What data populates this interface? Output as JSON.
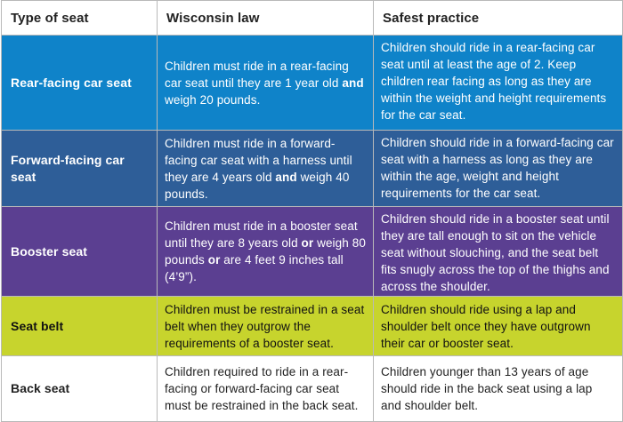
{
  "headers": {
    "type": "Type of seat",
    "law": "Wisconsin law",
    "practice": "Safest practice"
  },
  "rows": [
    {
      "type": "Rear-facing car seat",
      "law": [
        {
          "text": "Children must ride in a rear-facing car seat until they are 1 year old ",
          "bold": false
        },
        {
          "text": "and",
          "bold": true
        },
        {
          "text": " weigh 20 pounds.",
          "bold": false
        }
      ],
      "practice": "Children should ride in a rear-facing car seat until at least the age of 2. Keep children rear facing as long as they are within the weight and height requirements for the car seat."
    },
    {
      "type": "Forward-facing car seat",
      "law": [
        {
          "text": "Children must ride in a forward-facing car seat with a harness until they are 4 years old ",
          "bold": false
        },
        {
          "text": "and",
          "bold": true
        },
        {
          "text": " weigh 40 pounds.",
          "bold": false
        }
      ],
      "practice": "Children should ride in a forward-facing car seat with a harness as long as they are within the age, weight and height requirements for the car seat."
    },
    {
      "type": "Booster seat",
      "law": [
        {
          "text": "Children must ride in a booster seat until they are 8 years old ",
          "bold": false
        },
        {
          "text": "or",
          "bold": true
        },
        {
          "text": " weigh 80 pounds ",
          "bold": false
        },
        {
          "text": "or",
          "bold": true
        },
        {
          "text": " are 4 feet 9 inches tall (4’9”).",
          "bold": false
        }
      ],
      "practice": "Children should ride in a booster seat until they are tall enough to sit on the vehicle seat without slouching, and the seat belt fits snugly across the top of the thighs and across the shoulder."
    },
    {
      "type": "Seat belt",
      "law": [
        {
          "text": "Children must be restrained in a seat belt when they outgrow the requirements of a booster seat.",
          "bold": false
        }
      ],
      "practice": "Children should ride using a lap and shoulder belt once they have outgrown their car or booster seat."
    },
    {
      "type": "Back seat",
      "law": [
        {
          "text": "Children required to ride in a rear-facing or forward-facing car seat must be restrained in the back seat.",
          "bold": false
        }
      ],
      "practice": "Children younger than 13 years of age should ride in the back seat using a lap and shoulder belt."
    }
  ],
  "colors": {
    "rear": "#0f83c9",
    "forward": "#2e5e98",
    "booster": "#5b3f91",
    "belt": "#c7d42d",
    "back": "#ffffff"
  }
}
